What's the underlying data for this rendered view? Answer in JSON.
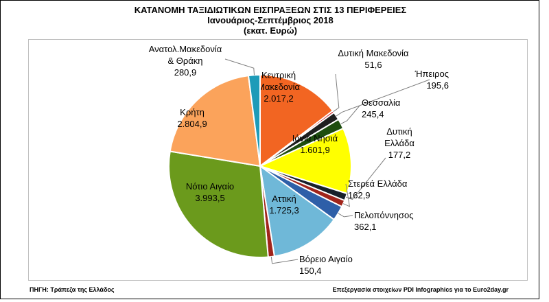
{
  "header": {
    "title": "ΚΑΤΑΝΟΜΗ ΤΑΞΙΔΙΩΤΙΚΩΝ ΕΙΣΠΡΑΞΕΩΝ ΣΤΙΣ 13 ΠΕΡΙΦΕΡΕΙΕΣ",
    "subtitle": "Ιανουάριος-Σεπτέμβριος 2018",
    "unit": "(εκατ. Ευρώ)"
  },
  "footer": {
    "source": "ΠΗΓΗ: Τράπεζα της Ελλάδος",
    "credit": "Επεξεργασία στοιχείων PDI Infographics για το Euro2day.gr"
  },
  "chart_data": {
    "type": "pie",
    "title": "ΚΑΤΑΝΟΜΗ ΤΑΞΙΔΙΩΤΙΚΩΝ ΕΙΣΠΡΑΞΕΩΝ ΣΤΙΣ 13 ΠΕΡΙΦΕΡΕΙΕΣ",
    "subtitle": "Ιανουάριος-Σεπτέμβριος 2018",
    "unit": "(εκατ. Ευρώ)",
    "slices": [
      {
        "name": "Κεντρική Μακεδονία",
        "label_lines": [
          "Κεντρική",
          "Μακεδονία"
        ],
        "value": 2017.2,
        "value_text": "2.017,2",
        "color": "#f26522",
        "label": "inside"
      },
      {
        "name": "Δυτική Μακεδονία",
        "label_lines": [
          "Δυτική Μακεδονία"
        ],
        "value": 51.6,
        "value_text": "51,6",
        "color": "#c00000",
        "label": "outside"
      },
      {
        "name": "Ήπειρος",
        "label_lines": [
          "Ήπειρος"
        ],
        "value": 195.6,
        "value_text": "195,6",
        "color": "#1f1f1f",
        "label": "outside"
      },
      {
        "name": "Θεσσαλία",
        "label_lines": [
          "Θεσσαλία"
        ],
        "value": 245.4,
        "value_text": "245,4",
        "color": "#1e4d0f",
        "label": "outside"
      },
      {
        "name": "Ιόνια Νησιά",
        "label_lines": [
          "Ιόνια Νησιά"
        ],
        "value": 1601.9,
        "value_text": "1.601,9",
        "color": "#ffff00",
        "label": "inside"
      },
      {
        "name": "Δυτική Ελλάδα",
        "label_lines": [
          "Δυτική",
          "Ελλάδα"
        ],
        "value": 177.2,
        "value_text": "177,2",
        "color": "#17202a",
        "label": "outside"
      },
      {
        "name": "Στερεά Ελλάδα",
        "label_lines": [
          "Στερεά Ελλάδα"
        ],
        "value": 162.9,
        "value_text": "162,9",
        "color": "#a0241b",
        "label": "outside"
      },
      {
        "name": "Πελοπόννησος",
        "label_lines": [
          "Πελοπόννησος"
        ],
        "value": 362.1,
        "value_text": "362,1",
        "color": "#2e5fa8",
        "label": "outside"
      },
      {
        "name": "Αττική",
        "label_lines": [
          "Αττική"
        ],
        "value": 1725.3,
        "value_text": "1.725,3",
        "color": "#6fb8d8",
        "label": "inside"
      },
      {
        "name": "Βόρειο Αιγαίο",
        "label_lines": [
          "Βόρειο Αιγαίο"
        ],
        "value": 150.4,
        "value_text": "150,4",
        "color": "#a0241b",
        "label": "outside"
      },
      {
        "name": "Νότιο Αιγαίο",
        "label_lines": [
          "Νότιο Αιγαίο"
        ],
        "value": 3993.5,
        "value_text": "3.993,5",
        "color": "#6b9a1c",
        "label": "inside"
      },
      {
        "name": "Κρήτη",
        "label_lines": [
          "Κρήτη"
        ],
        "value": 2804.9,
        "value_text": "2.804,9",
        "color": "#fba35b",
        "label": "inside"
      },
      {
        "name": "Ανατολ.Μακεδονία & Θράκη",
        "label_lines": [
          "Ανατολ.Μακεδονία",
          "& Θράκη"
        ],
        "value": 280.9,
        "value_text": "280,9",
        "color": "#1e9bb8",
        "label": "outside"
      }
    ],
    "start_angle_deg": 0,
    "direction": "clockwise",
    "legend": "none"
  }
}
